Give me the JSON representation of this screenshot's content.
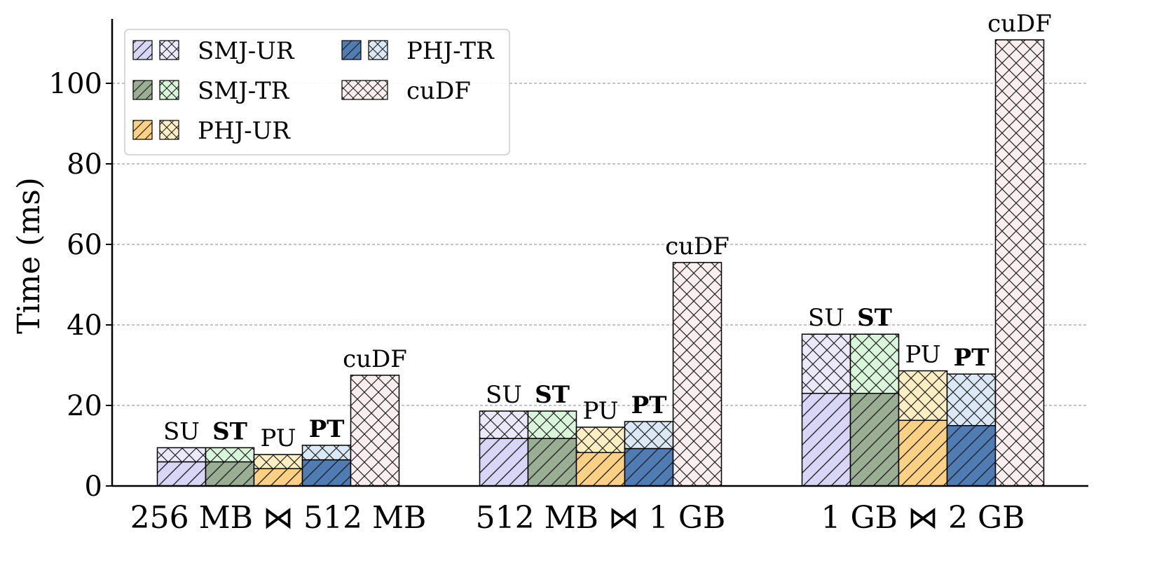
{
  "chart_data": {
    "type": "bar",
    "stacked": true,
    "title": "",
    "ylabel": "Time (ms)",
    "xlabel": "",
    "ylim": [
      0,
      116
    ],
    "yticks": [
      0,
      20,
      40,
      60,
      80,
      100
    ],
    "grid": "y-dashed",
    "legend_position": "top-left",
    "categories": [
      "256 MB ⋈ 512 MB",
      "512 MB ⋈ 1 GB",
      "1 GB ⋈ 2 GB"
    ],
    "legend": [
      {
        "label": "SMJ-UR",
        "base_color": "#d8d5f7",
        "top_color": "#ebe9fb"
      },
      {
        "label": "SMJ-TR",
        "base_color": "#9aae94",
        "top_color": "#d9f5da"
      },
      {
        "label": "PHJ-UR",
        "base_color": "#fdd183",
        "top_color": "#feefc3"
      },
      {
        "label": "PHJ-TR",
        "base_color": "#4f7db3",
        "top_color": "#dbe8f5"
      },
      {
        "label": "cuDF",
        "base_color": "#fbeef0",
        "top_color": "#fbeef0"
      }
    ],
    "series": [
      {
        "id": "SU",
        "label": "SU",
        "bold": false,
        "base_color": "#d8d5f7",
        "top_color": "#ebe9fb",
        "base": [
          6,
          11.8,
          23
        ],
        "total": [
          9.5,
          18.6,
          37.7
        ]
      },
      {
        "id": "ST",
        "label": "ST",
        "bold": true,
        "base_color": "#9aae94",
        "top_color": "#d9f5da",
        "base": [
          6,
          11.8,
          23
        ],
        "total": [
          9.5,
          18.6,
          37.7
        ]
      },
      {
        "id": "PU",
        "label": "PU",
        "bold": false,
        "base_color": "#fdd183",
        "top_color": "#feefc3",
        "base": [
          4.3,
          8.3,
          16.3
        ],
        "total": [
          7.8,
          14.6,
          28.6
        ]
      },
      {
        "id": "PT",
        "label": "PT",
        "bold": true,
        "base_color": "#4f7db3",
        "top_color": "#dbe8f5",
        "base": [
          6.5,
          9.3,
          15
        ],
        "total": [
          10.1,
          16,
          27.8
        ]
      },
      {
        "id": "cuDF",
        "label": "cuDF",
        "bold": false,
        "base_color": "#fbeef0",
        "top_color": "#fbeef0",
        "base": [
          27.5,
          55.5,
          110.8
        ],
        "total": [
          27.5,
          55.5,
          110.8
        ]
      }
    ]
  }
}
